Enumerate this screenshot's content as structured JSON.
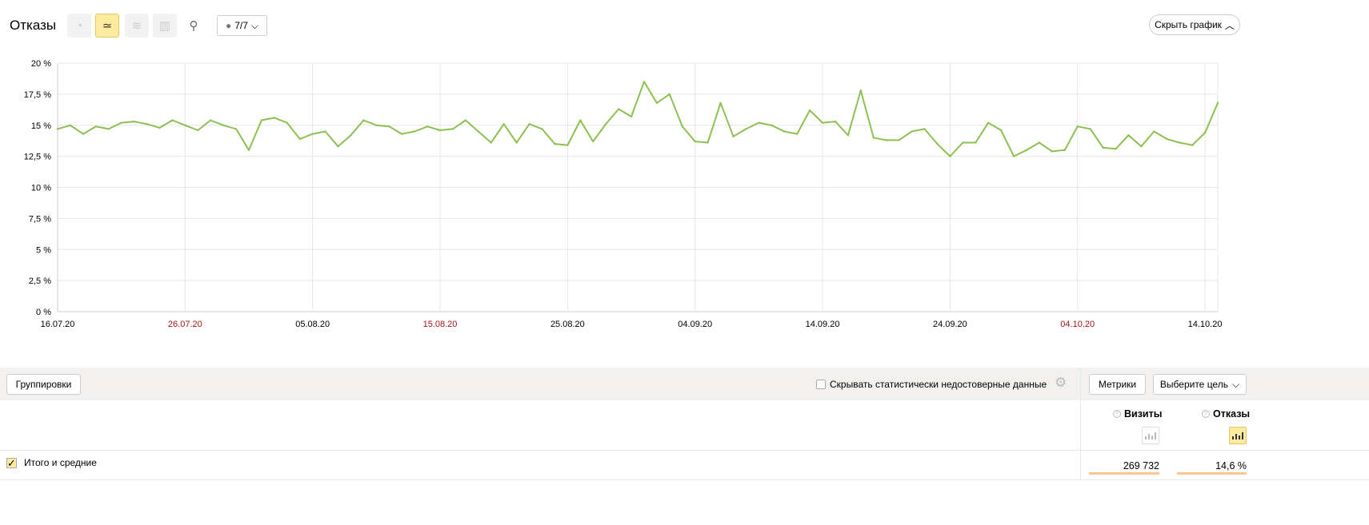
{
  "header": {
    "title": "Отказы",
    "annotations_label": "7/7",
    "hide_chart_label": "Скрыть график",
    "chart_types": [
      {
        "icon": "pie-chart-icon",
        "active": false
      },
      {
        "icon": "line-chart-icon",
        "active": true
      },
      {
        "icon": "area-chart-icon",
        "active": false
      },
      {
        "icon": "bar-chart-icon",
        "active": false
      },
      {
        "icon": "map-pin-icon",
        "active": false
      }
    ]
  },
  "chart_data": {
    "type": "line",
    "ylim": [
      0,
      20
    ],
    "y_ticks": [
      "0 %",
      "2,5 %",
      "5 %",
      "7,5 %",
      "10 %",
      "12,5 %",
      "15 %",
      "17,5 %",
      "20 %"
    ],
    "x_ticks": [
      {
        "label": "16.07.20",
        "weekend": false
      },
      {
        "label": "26.07.20",
        "weekend": true
      },
      {
        "label": "05.08.20",
        "weekend": false
      },
      {
        "label": "15.08.20",
        "weekend": true
      },
      {
        "label": "25.08.20",
        "weekend": false
      },
      {
        "label": "04.09.20",
        "weekend": false
      },
      {
        "label": "14.09.20",
        "weekend": false
      },
      {
        "label": "24.09.20",
        "weekend": false
      },
      {
        "label": "04.10.20",
        "weekend": true
      },
      {
        "label": "14.10.20",
        "weekend": false
      }
    ],
    "x_start": "16.07.20",
    "x_end": "15.10.20",
    "grid": true,
    "line_color": "#8cc152",
    "weekend_color": "#a31515",
    "values": [
      14.7,
      15.0,
      14.3,
      14.9,
      14.7,
      15.2,
      15.3,
      15.1,
      14.8,
      15.4,
      15.0,
      14.6,
      15.4,
      15.0,
      14.7,
      13.0,
      15.4,
      15.6,
      15.2,
      13.9,
      14.3,
      14.5,
      13.3,
      14.2,
      15.4,
      15.0,
      14.9,
      14.3,
      14.5,
      14.9,
      14.6,
      14.7,
      15.4,
      14.5,
      13.6,
      15.1,
      13.6,
      15.1,
      14.7,
      13.5,
      13.4,
      15.4,
      13.7,
      15.1,
      16.3,
      15.7,
      18.5,
      16.8,
      17.5,
      14.9,
      13.7,
      13.6,
      16.8,
      14.1,
      14.7,
      15.2,
      15.0,
      14.5,
      14.3,
      16.2,
      15.2,
      15.3,
      14.2,
      17.8,
      14.0,
      13.8,
      13.8,
      14.5,
      14.7,
      13.5,
      12.5,
      13.6,
      13.6,
      15.2,
      14.6,
      12.5,
      13.0,
      13.6,
      12.9,
      13.0,
      14.9,
      14.7,
      13.2,
      13.1,
      14.2,
      13.3,
      14.5,
      13.9,
      13.6,
      13.4,
      14.4,
      16.8
    ]
  },
  "toolbar": {
    "groupings_label": "Группировки",
    "hide_unreliable_label": "Скрывать статистически недостоверные данные",
    "hide_unreliable_checked": false,
    "metrics_label": "Метрики",
    "goal_label": "Выберите цель"
  },
  "table": {
    "columns": [
      {
        "label": "Визиты",
        "selected": false
      },
      {
        "label": "Отказы",
        "selected": true
      }
    ],
    "rows": [
      {
        "label": "Итого и средние",
        "checked": true,
        "values": [
          "269 732",
          "14,6 %"
        ]
      }
    ]
  }
}
